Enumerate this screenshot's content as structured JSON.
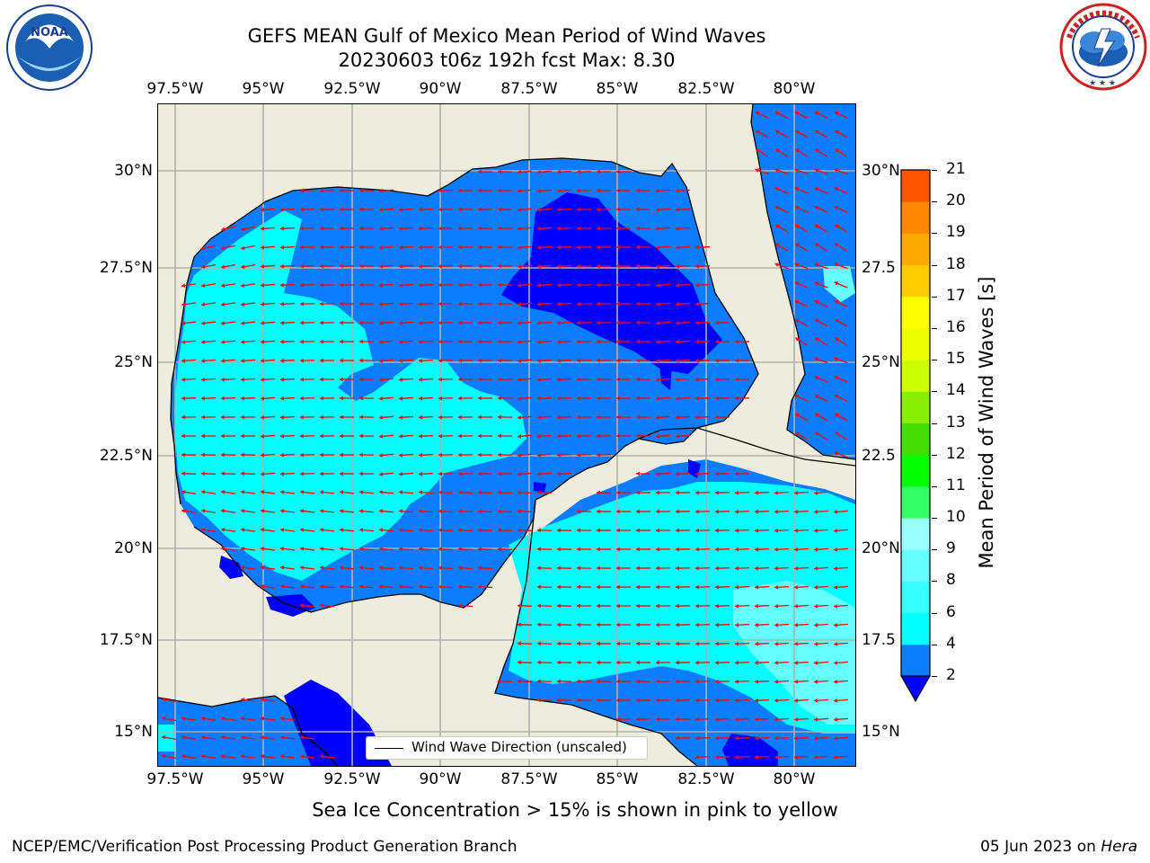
{
  "header": {
    "title_line1": "GEFS MEAN Gulf of Mexico Mean Period of Wind Waves",
    "title_line2": "20230603 t06z 192h fcst   Max: 8.30"
  },
  "logos": {
    "left": {
      "name": "NOAA",
      "text": "NOAA",
      "ring_text": "NATIONAL OCEANIC AND ATMOSPHERIC ADMINISTRATION · U.S. DEPARTMENT OF COMMERCE"
    },
    "right": {
      "name": "National Weather Service",
      "ring_text": "NATIONAL WEATHER SERVICE"
    }
  },
  "map": {
    "lon_labels": [
      "97.5°W",
      "95°W",
      "92.5°W",
      "90°W",
      "87.5°W",
      "85°W",
      "82.5°W",
      "80°W"
    ],
    "lat_labels_left": [
      "30°N",
      "27.5°N",
      "25°N",
      "22.5°N",
      "20°N",
      "17.5°N",
      "15°N"
    ],
    "lat_labels_right": [
      "30°N",
      "27.5",
      "25°N",
      "22.5",
      "20°N",
      "17.5",
      "15°N"
    ],
    "legend_label": "Wind Wave Direction (unscaled)",
    "colors": {
      "land": "#eeecdc",
      "ocean": "#0a7dff",
      "low": "#0000ff",
      "mid": "#00ffff",
      "mid2": "#66ffff",
      "arrow": "#ff0000",
      "grid": "#b0b0b0",
      "coast": "#000000"
    }
  },
  "colorbar": {
    "title": "Mean Period of Wind Waves [s]",
    "labels": [
      "2",
      "4",
      "6",
      "8",
      "9",
      "10",
      "11",
      "12",
      "13",
      "14",
      "15",
      "16",
      "17",
      "18",
      "19",
      "20",
      "21"
    ],
    "colors": [
      "#0a7dff",
      "#00ffff",
      "#33ffff",
      "#66ffff",
      "#99ffff",
      "#33ff66",
      "#00ff00",
      "#44dd00",
      "#88ee00",
      "#ccff00",
      "#eeff00",
      "#ffff00",
      "#ffcc00",
      "#ffaa00",
      "#ff8800",
      "#ff5500",
      "#ff2200",
      "#ff0000"
    ],
    "extend_min_color": "#0000ff"
  },
  "footer": {
    "note": "Sea Ice Concentration > 15% is shown in pink to yellow",
    "left": "NCEP/EMC/Verification Post Processing Product Generation Branch",
    "date": "05 Jun 2023 on",
    "host": "Hera"
  }
}
